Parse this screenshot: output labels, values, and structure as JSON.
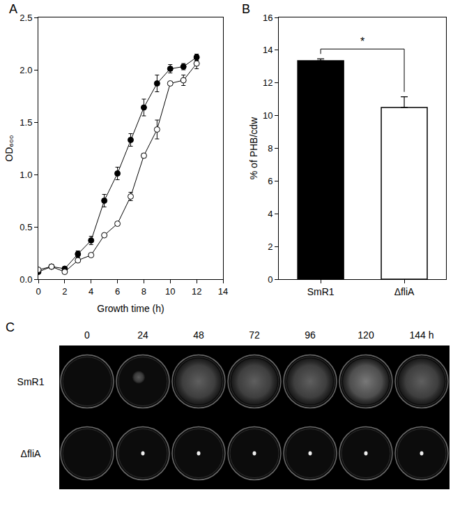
{
  "chart_data": [
    {
      "type": "line",
      "title": "A",
      "x": [
        0,
        1,
        2,
        3,
        4,
        5,
        6,
        7,
        8,
        9,
        10,
        11,
        12
      ],
      "series": [
        {
          "color": "#000000",
          "marker": "filled",
          "values": [
            0.07,
            0.12,
            0.1,
            0.24,
            0.37,
            0.75,
            1.01,
            1.33,
            1.64,
            1.87,
            2.01,
            2.03,
            2.12
          ],
          "errors": [
            0.01,
            0.01,
            0.01,
            0.03,
            0.04,
            0.06,
            0.06,
            0.06,
            0.08,
            0.08,
            0.04,
            0.03,
            0.03
          ]
        },
        {
          "color": "#000000",
          "marker": "open",
          "values": [
            0.09,
            0.12,
            0.07,
            0.18,
            0.23,
            0.42,
            0.53,
            0.79,
            1.18,
            1.43,
            1.87,
            1.9,
            2.06
          ],
          "errors": [
            0.01,
            0.01,
            0.01,
            0.01,
            0.01,
            0.01,
            0.01,
            0.04,
            0.02,
            0.09,
            0.01,
            0.05,
            0.05
          ]
        }
      ],
      "x_label": "Growth time (h)",
      "y_label": "OD₆₀₀",
      "xlim": [
        0,
        14
      ],
      "xticks": [
        0,
        2,
        4,
        6,
        8,
        10,
        12,
        14
      ],
      "ylim": [
        0,
        2.5
      ],
      "yticks": [
        {
          "value": 0,
          "label": "0.0"
        },
        0.5,
        {
          "value": 1,
          "label": "1.0"
        },
        1.5,
        {
          "value": 2,
          "label": "2.0"
        },
        2.5
      ],
      "grid": false
    },
    {
      "type": "bar",
      "title": "B",
      "categories": [
        "SmR1",
        "ΔfliA"
      ],
      "values": [
        13.35,
        10.5
      ],
      "errors": [
        0.12,
        0.65
      ],
      "colors": [
        "#000000",
        "#ffffff"
      ],
      "y_label": "% of PHB/cdw",
      "ylim": [
        0,
        16
      ],
      "yticks": [
        0,
        2,
        4,
        6,
        8,
        10,
        12,
        14,
        16
      ],
      "annotations": [
        "*"
      ],
      "grid": false
    }
  ],
  "panel_c": {
    "label": "C",
    "time_labels": [
      "0",
      "24",
      "48",
      "72",
      "96",
      "120",
      "144 h"
    ],
    "strains": [
      "SmR1",
      "ΔfliA"
    ]
  }
}
